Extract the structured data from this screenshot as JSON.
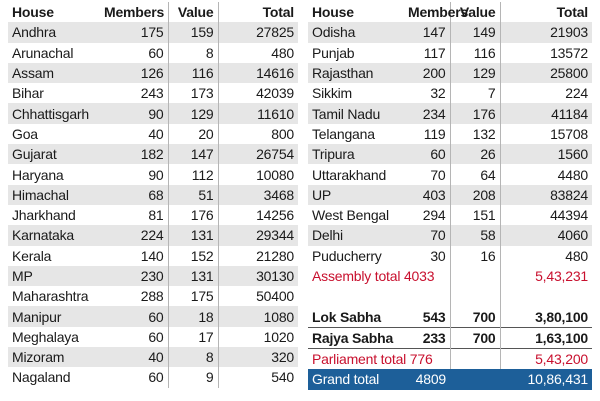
{
  "headers": {
    "house": "House",
    "members": "Members",
    "value": "Value",
    "total": "Total"
  },
  "left_rows": [
    {
      "house": "Andhra",
      "members": "175",
      "value": "159",
      "total": "27825"
    },
    {
      "house": "Arunachal",
      "members": "60",
      "value": "8",
      "total": "480"
    },
    {
      "house": "Assam",
      "members": "126",
      "value": "116",
      "total": "14616"
    },
    {
      "house": "Bihar",
      "members": "243",
      "value": "173",
      "total": "42039"
    },
    {
      "house": "Chhattisgarh",
      "members": "90",
      "value": "129",
      "total": "11610"
    },
    {
      "house": "Goa",
      "members": "40",
      "value": "20",
      "total": "800"
    },
    {
      "house": "Gujarat",
      "members": "182",
      "value": "147",
      "total": "26754"
    },
    {
      "house": "Haryana",
      "members": "90",
      "value": "112",
      "total": "10080"
    },
    {
      "house": "Himachal",
      "members": "68",
      "value": "51",
      "total": "3468"
    },
    {
      "house": "Jharkhand",
      "members": "81",
      "value": "176",
      "total": "14256"
    },
    {
      "house": "Karnataka",
      "members": "224",
      "value": "131",
      "total": "29344"
    },
    {
      "house": "Kerala",
      "members": "140",
      "value": "152",
      "total": "21280"
    },
    {
      "house": "MP",
      "members": "230",
      "value": "131",
      "total": "30130"
    },
    {
      "house": "Maharashtra",
      "members": "288",
      "value": "175",
      "total": "50400"
    },
    {
      "house": "Manipur",
      "members": "60",
      "value": "18",
      "total": "1080"
    },
    {
      "house": "Meghalaya",
      "members": "60",
      "value": "17",
      "total": "1020"
    },
    {
      "house": "Mizoram",
      "members": "40",
      "value": "8",
      "total": "320"
    },
    {
      "house": "Nagaland",
      "members": "60",
      "value": "9",
      "total": "540"
    }
  ],
  "right_rows": [
    {
      "house": "Odisha",
      "members": "147",
      "value": "149",
      "total": "21903"
    },
    {
      "house": "Punjab",
      "members": "117",
      "value": "116",
      "total": "13572"
    },
    {
      "house": "Rajasthan",
      "members": "200",
      "value": "129",
      "total": "25800"
    },
    {
      "house": "Sikkim",
      "members": "32",
      "value": "7",
      "total": "224"
    },
    {
      "house": "Tamil Nadu",
      "members": "234",
      "value": "176",
      "total": "41184"
    },
    {
      "house": "Telangana",
      "members": "119",
      "value": "132",
      "total": "15708"
    },
    {
      "house": "Tripura",
      "members": "60",
      "value": "26",
      "total": "1560"
    },
    {
      "house": "Uttarakhand",
      "members": "70",
      "value": "64",
      "total": "4480"
    },
    {
      "house": "UP",
      "members": "403",
      "value": "208",
      "total": "83824"
    },
    {
      "house": "West Bengal",
      "members": "294",
      "value": "151",
      "total": "44394"
    },
    {
      "house": "Delhi",
      "members": "70",
      "value": "58",
      "total": "4060"
    },
    {
      "house": "Puducherry",
      "members": "30",
      "value": "16",
      "total": "480"
    }
  ],
  "assembly_total": {
    "label": "Assembly total",
    "members": "4033",
    "total": "5,43,231"
  },
  "lok_sabha": {
    "house": "Lok Sabha",
    "members": "543",
    "value": "700",
    "total": "3,80,100"
  },
  "rajya_sabha": {
    "house": "Rajya Sabha",
    "members": "233",
    "value": "700",
    "total": "1,63,100"
  },
  "parliament_total": {
    "label": "Parliament total",
    "members": "776",
    "total": "5,43,200"
  },
  "grand_total": {
    "label": "Grand total",
    "members": "4809",
    "total": "10,86,431"
  },
  "colors": {
    "shade": "#e6e6e6",
    "red_text": "#c8102e",
    "grand_bg": "#1d5f99"
  }
}
